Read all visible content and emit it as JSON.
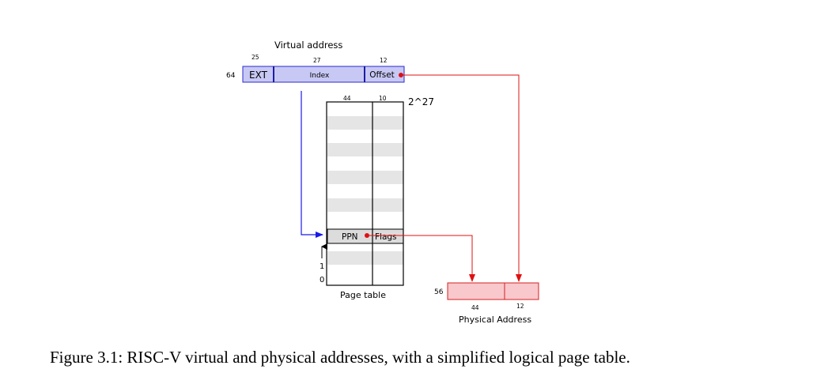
{
  "virtual_address": {
    "title": "Virtual address",
    "width": "64",
    "fields": [
      {
        "label": "EXT",
        "bits": "25"
      },
      {
        "label": "Index",
        "bits": "27"
      },
      {
        "label": "Offset",
        "bits": "12"
      }
    ]
  },
  "page_table": {
    "title": "Page table",
    "ppn_bits": "44",
    "flags_bits": "10",
    "entries": "2^27",
    "ppn_label": "PPN",
    "flags_label": "Flags",
    "index_one": "1",
    "index_zero": "0"
  },
  "physical_address": {
    "title": "Physical Address",
    "width": "56",
    "ppn_bits": "44",
    "offset_bits": "12"
  },
  "caption": "Figure 3.1: RISC-V virtual and physical addresses, with a simplified logical page table.",
  "colors": {
    "virtual_fill": "#c8c8f5",
    "virtual_stroke": "#2a2ad0",
    "physical_fill": "#f8c8cc",
    "physical_stroke": "#d42020",
    "stripe": "#e5e5e5",
    "arrow_blue": "#1a1ae6",
    "arrow_red": "#e01010"
  }
}
